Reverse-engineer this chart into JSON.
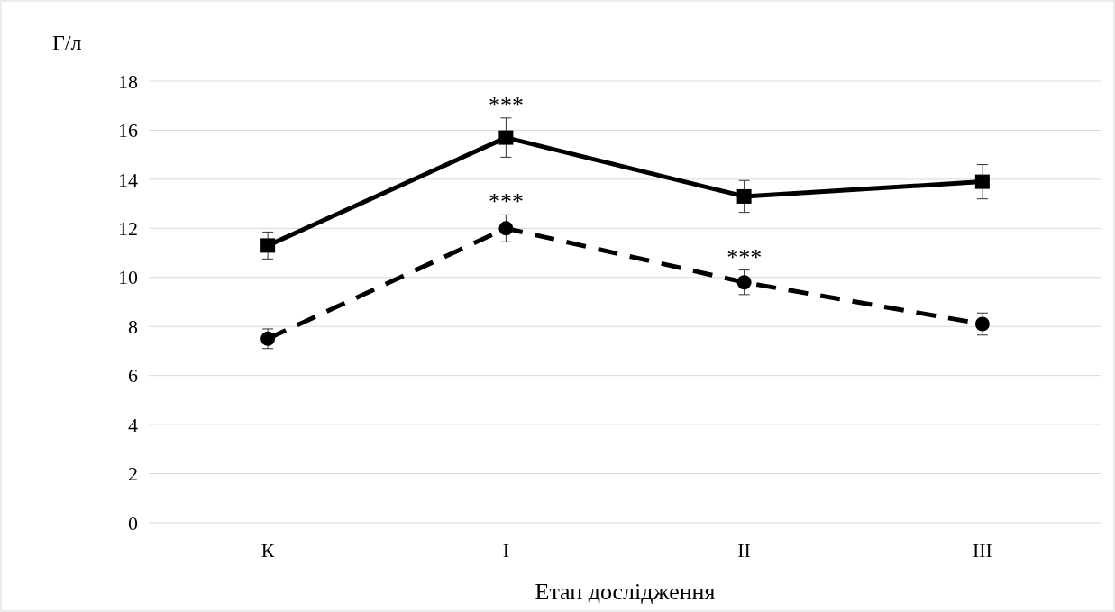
{
  "chart_data": {
    "type": "line",
    "ylabel": "Г/л",
    "xlabel": "Етап дослідження",
    "categories": [
      "К",
      "І",
      "ІІ",
      "ІІІ"
    ],
    "ylim": [
      0,
      18
    ],
    "yticks": [
      0,
      2,
      4,
      6,
      8,
      10,
      12,
      14,
      16,
      18
    ],
    "grid": "y",
    "series": [
      {
        "color": "#000000",
        "marker": "square",
        "line_style": "solid",
        "values": [
          11.3,
          15.7,
          13.3,
          13.9
        ],
        "errors": [
          0.55,
          0.8,
          0.65,
          0.7
        ]
      },
      {
        "color": "#000000",
        "marker": "circle",
        "line_style": "dashed",
        "values": [
          7.5,
          12.0,
          9.8,
          8.1
        ],
        "errors": [
          0.4,
          0.55,
          0.5,
          0.45
        ]
      }
    ],
    "annotations": [
      {
        "text": "***",
        "x": "І",
        "y": 15.7
      },
      {
        "text": "***",
        "x": "І",
        "y": 12.0
      },
      {
        "text": "***",
        "x": "ІІ",
        "y": 9.8
      }
    ]
  }
}
